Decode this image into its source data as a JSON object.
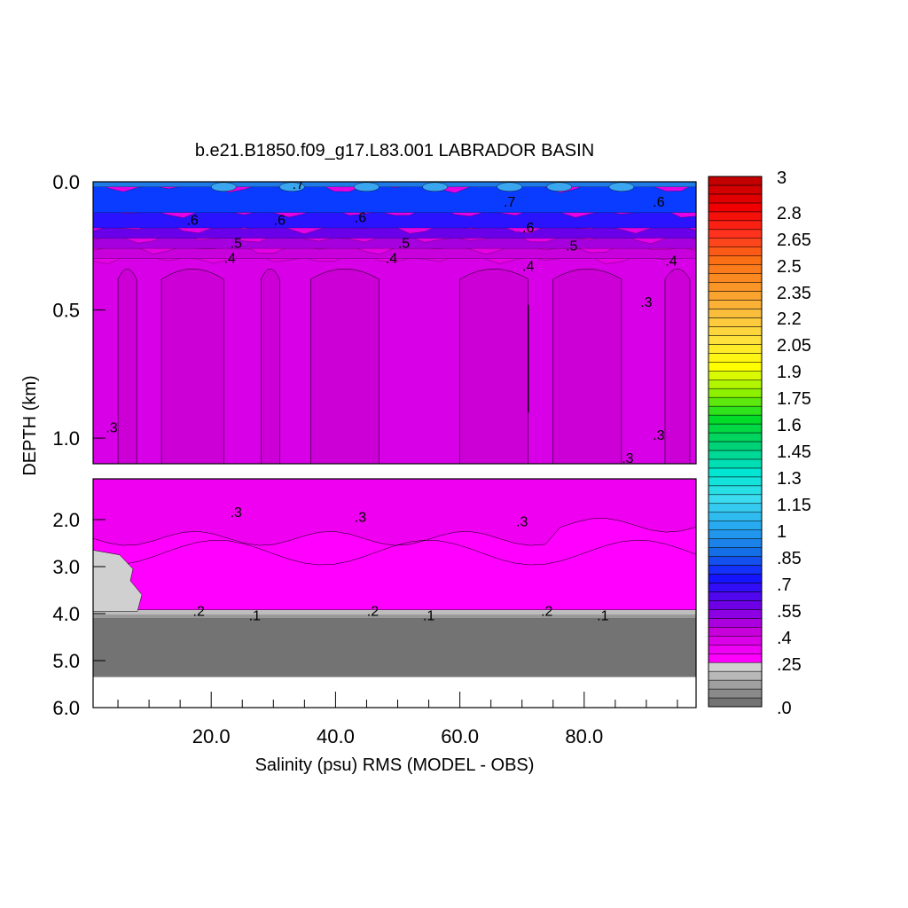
{
  "chart_data": {
    "type": "heatmap",
    "title": "b.e21.B1850.f09_g17.L83.001 LABRADOR BASIN",
    "xlabel": "Salinity (psu) RMS (MODEL - OBS)",
    "ylabel": "DEPTH (km)",
    "xlim": [
      1,
      98
    ],
    "upper_panel": {
      "ylim": [
        0.0,
        1.1
      ],
      "y_ticks": [
        0.0,
        0.5,
        1.0
      ],
      "y_tick_labels": [
        "0.0",
        "0.5",
        "1.0"
      ]
    },
    "lower_panel": {
      "ylim": [
        1.1,
        6.0
      ],
      "y_ticks": [
        2.0,
        3.0,
        4.0,
        5.0,
        6.0
      ],
      "y_tick_labels": [
        "2.0",
        "3.0",
        "4.0",
        "5.0",
        "6.0"
      ]
    },
    "x_ticks": [
      20,
      40,
      60,
      80
    ],
    "x_tick_labels": [
      "20.0",
      "40.0",
      "60.0",
      "80.0"
    ],
    "colorbar": {
      "min": 0.0,
      "max": 3.0,
      "labels": [
        "3",
        "2.8",
        "2.65",
        "2.5",
        "2.35",
        "2.2",
        "2.05",
        "1.9",
        "1.75",
        "1.6",
        "1.45",
        "1.3",
        "1.15",
        "1",
        ".85",
        ".7",
        ".55",
        ".4",
        ".25",
        ".0"
      ]
    },
    "layers": [
      {
        "depth_from": 0.0,
        "depth_to": 0.15,
        "value": 0.75
      },
      {
        "depth_from": 0.15,
        "depth_to": 0.3,
        "value": 0.55
      },
      {
        "depth_from": 0.3,
        "depth_to": 1.1,
        "value": 0.35
      },
      {
        "depth_from": 1.1,
        "depth_to": 4.0,
        "value": 0.28
      },
      {
        "depth_from": 4.0,
        "depth_to": 5.35,
        "value": 0.0
      }
    ],
    "contour_labels_upper": [
      {
        "text": ".7",
        "x": 34,
        "depth": 0.01
      },
      {
        "text": ".7",
        "x": 68,
        "depth": 0.08
      },
      {
        "text": ".6",
        "x": 17,
        "depth": 0.15
      },
      {
        "text": ".6",
        "x": 31,
        "depth": 0.15
      },
      {
        "text": ".6",
        "x": 44,
        "depth": 0.14
      },
      {
        "text": ".6",
        "x": 71,
        "depth": 0.18
      },
      {
        "text": ".6",
        "x": 92,
        "depth": 0.08
      },
      {
        "text": ".5",
        "x": 24,
        "depth": 0.24
      },
      {
        "text": ".5",
        "x": 51,
        "depth": 0.24
      },
      {
        "text": ".5",
        "x": 78,
        "depth": 0.25
      },
      {
        "text": ".4",
        "x": 23,
        "depth": 0.3
      },
      {
        "text": ".4",
        "x": 49,
        "depth": 0.3
      },
      {
        "text": ".4",
        "x": 71,
        "depth": 0.33
      },
      {
        "text": ".4",
        "x": 94,
        "depth": 0.31
      },
      {
        "text": ".3",
        "x": 90,
        "depth": 0.47
      },
      {
        "text": ".3",
        "x": 4,
        "depth": 0.96
      },
      {
        "text": ".3",
        "x": 92,
        "depth": 0.99
      },
      {
        "text": ".3",
        "x": 87,
        "depth": 1.08
      }
    ],
    "contour_labels_lower": [
      {
        "text": ".3",
        "x": 24,
        "depth": 1.85
      },
      {
        "text": ".3",
        "x": 44,
        "depth": 1.95
      },
      {
        "text": ".3",
        "x": 70,
        "depth": 2.05
      },
      {
        "text": ".2",
        "x": 18,
        "depth": 3.95
      },
      {
        "text": ".2",
        "x": 46,
        "depth": 3.95
      },
      {
        "text": ".2",
        "x": 74,
        "depth": 3.95
      },
      {
        "text": ".1",
        "x": 27,
        "depth": 4.05
      },
      {
        "text": ".1",
        "x": 55,
        "depth": 4.05
      },
      {
        "text": ".1",
        "x": 83,
        "depth": 4.05
      }
    ]
  }
}
